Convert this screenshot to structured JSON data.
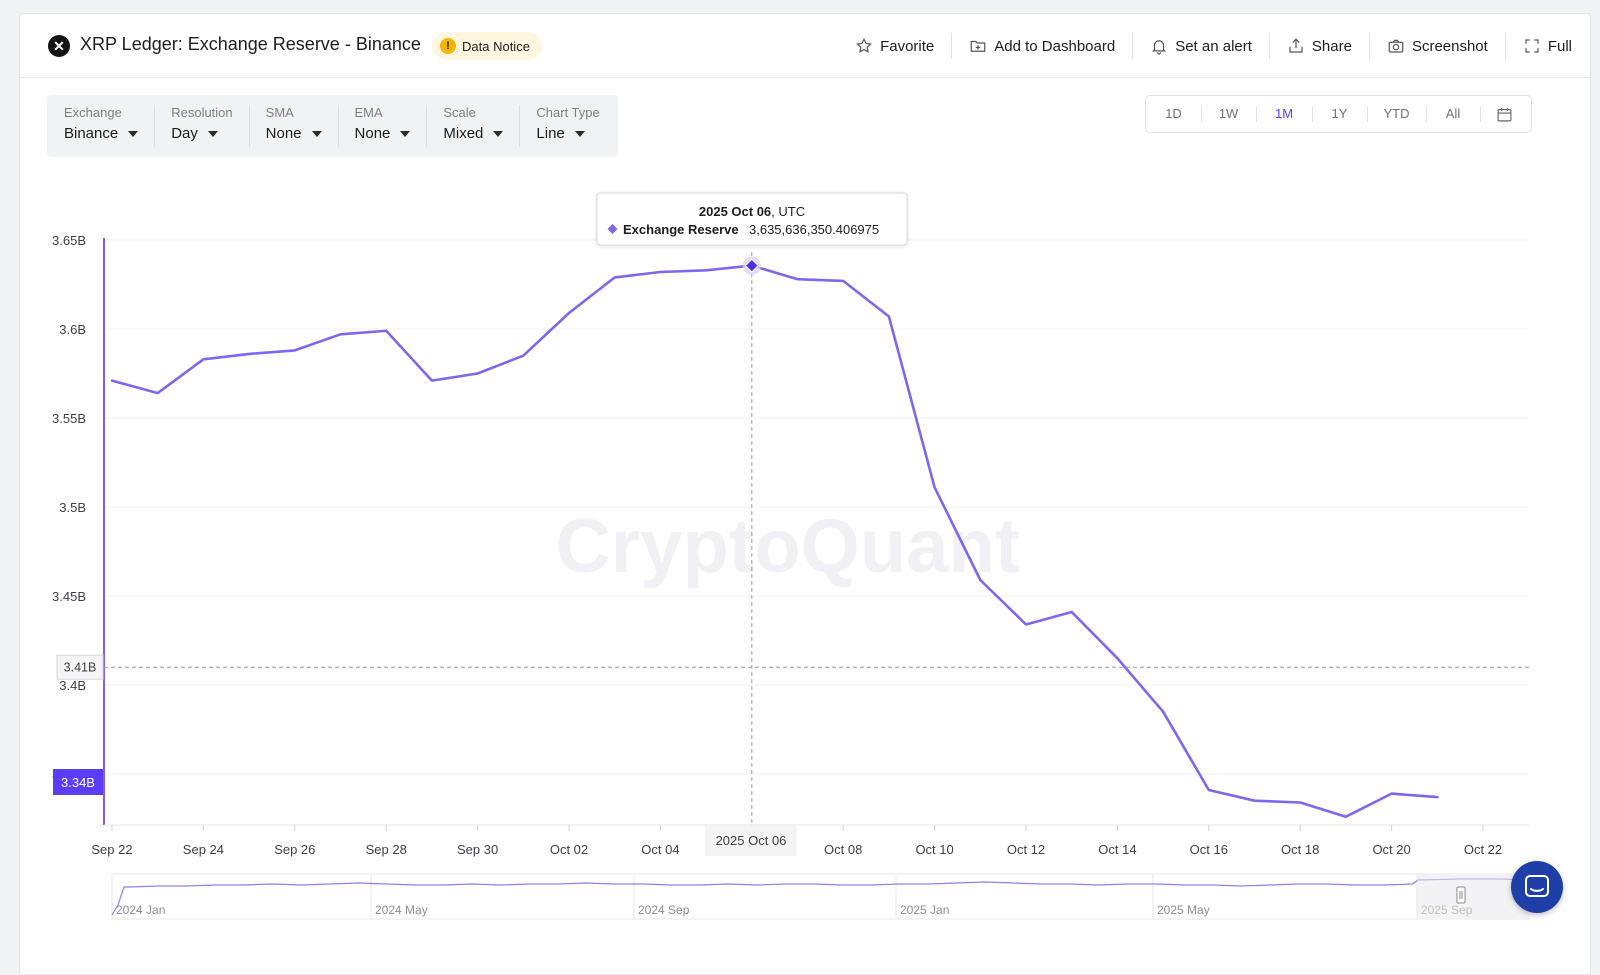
{
  "header": {
    "title": "XRP Ledger: Exchange Reserve - Binance",
    "notice": "Data Notice",
    "actions": [
      {
        "label": "Favorite",
        "icon": "star-icon"
      },
      {
        "label": "Add to Dashboard",
        "icon": "folder-plus-icon"
      },
      {
        "label": "Set an alert",
        "icon": "bell-icon"
      },
      {
        "label": "Share",
        "icon": "share-icon"
      },
      {
        "label": "Screenshot",
        "icon": "camera-icon"
      },
      {
        "label": "Full",
        "icon": "fullscreen-icon"
      }
    ]
  },
  "controls": [
    {
      "label": "Exchange",
      "value": "Binance"
    },
    {
      "label": "Resolution",
      "value": "Day"
    },
    {
      "label": "SMA",
      "value": "None"
    },
    {
      "label": "EMA",
      "value": "None"
    },
    {
      "label": "Scale",
      "value": "Mixed"
    },
    {
      "label": "Chart Type",
      "value": "Line"
    }
  ],
  "ranges": {
    "items": [
      "1D",
      "1W",
      "1M",
      "1Y",
      "YTD",
      "All"
    ],
    "active": "1M"
  },
  "watermark": "CryptoQuant",
  "colors": {
    "series": "#7b68ee",
    "accent": "#5b3df5",
    "axis": "#7f5cf0"
  },
  "chart_data": {
    "type": "line",
    "series": [
      {
        "name": "Exchange Reserve",
        "x": [
          "Sep 22",
          "Sep 23",
          "Sep 24",
          "Sep 25",
          "Sep 26",
          "Sep 27",
          "Sep 28",
          "Sep 29",
          "Sep 30",
          "Oct 01",
          "Oct 02",
          "Oct 03",
          "Oct 04",
          "Oct 05",
          "Oct 06",
          "Oct 07",
          "Oct 08",
          "Oct 09",
          "Oct 10",
          "Oct 11",
          "Oct 12",
          "Oct 13",
          "Oct 14",
          "Oct 15",
          "Oct 16",
          "Oct 17",
          "Oct 18",
          "Oct 19",
          "Oct 20",
          "Oct 21"
        ],
        "values": [
          3.571,
          3.564,
          3.583,
          3.586,
          3.588,
          3.597,
          3.599,
          3.571,
          3.575,
          3.585,
          3.609,
          3.629,
          3.632,
          3.633,
          3.6356,
          3.628,
          3.627,
          3.607,
          3.511,
          3.459,
          3.434,
          3.441,
          3.415,
          3.385,
          3.341,
          3.335,
          3.334,
          3.326,
          3.339,
          3.337
        ]
      }
    ],
    "y_ticks": [
      "3.65B",
      "3.6B",
      "3.55B",
      "3.5B",
      "3.45B",
      "3.4B",
      "3.35B"
    ],
    "y_tick_values": [
      3.65,
      3.6,
      3.55,
      3.5,
      3.45,
      3.4,
      3.35
    ],
    "ylim": [
      3.322,
      3.658
    ],
    "x_ticks": [
      "Sep 22",
      "Sep 24",
      "Sep 26",
      "Sep 28",
      "Sep 30",
      "Oct 02",
      "Oct 04",
      "Oct 06",
      "Oct 08",
      "Oct 10",
      "Oct 12",
      "Oct 14",
      "Oct 16",
      "Oct 18",
      "Oct 20",
      "Oct 22"
    ],
    "x_tick_index": [
      0,
      2,
      4,
      6,
      8,
      10,
      12,
      14,
      16,
      18,
      20,
      22,
      24,
      26,
      28,
      30
    ],
    "grid": true,
    "tooltip": {
      "date": "2025 Oct 06",
      "tz": ", UTC",
      "series": "Exchange Reserve",
      "value": "3,635,636,350.406975",
      "index": 14
    },
    "crosshair": {
      "x_label": "2025 Oct 06",
      "y_label": "3.41B",
      "y_value": 3.41
    },
    "last_value_label": "3.34B",
    "last_value": 3.3365,
    "navigator": {
      "labels": [
        "2024 Jan",
        "2024 May",
        "2024 Sep",
        "2025 Jan",
        "2025 May",
        "2025 Sep"
      ]
    }
  }
}
